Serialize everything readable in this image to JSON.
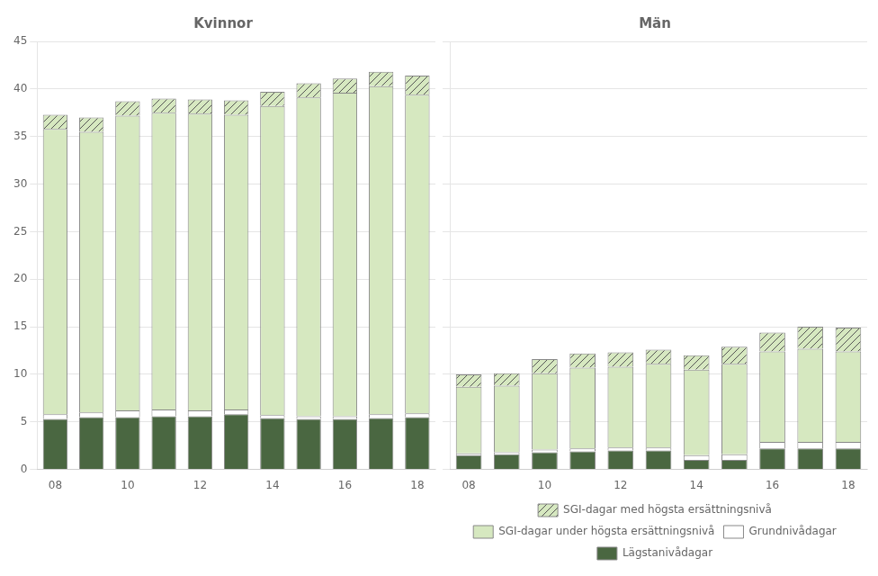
{
  "chart_data": [
    {
      "type": "bar",
      "title": "Kvinnor",
      "stacked": true,
      "categories": [
        "08",
        null,
        "10",
        null,
        "12",
        null,
        "14",
        null,
        "16",
        null,
        "18"
      ],
      "series": [
        {
          "name": "Lägstanivådagar",
          "color": "#4a6741",
          "values": [
            5.3,
            5.5,
            5.5,
            5.6,
            5.6,
            5.8,
            5.4,
            5.3,
            5.3,
            5.4,
            5.5
          ]
        },
        {
          "name": "Grundnivådagar",
          "color": "#ffffff",
          "values": [
            0.5,
            0.5,
            0.7,
            0.7,
            0.6,
            0.5,
            0.3,
            0.3,
            0.3,
            0.4,
            0.4
          ]
        },
        {
          "name": "SGI-dagar under högsta ersättningsnivå",
          "color": "#d6e8c0",
          "values": [
            30.0,
            29.5,
            31.0,
            31.2,
            31.2,
            31.0,
            32.5,
            33.5,
            34.0,
            34.5,
            33.5
          ]
        },
        {
          "name": "SGI-dagar med högsta ersättningsnivå",
          "color": "#d6e8c0",
          "values": [
            1.5,
            1.5,
            1.5,
            1.5,
            1.5,
            1.5,
            1.5,
            1.5,
            1.5,
            1.5,
            2.0
          ]
        }
      ],
      "ylim": [
        0,
        45
      ],
      "yticks": [
        0,
        5,
        10,
        15,
        20,
        25,
        30,
        35,
        40,
        45
      ],
      "grid": true
    },
    {
      "type": "bar",
      "title": "Män",
      "stacked": true,
      "tick_labels": "x",
      "legend": "bottom",
      "categories": [
        "08",
        null,
        "10",
        null,
        "12",
        null,
        "14",
        null,
        "16",
        null,
        "18"
      ],
      "series": [
        {
          "name": "Lägstanivådagar",
          "color": "#4a6741",
          "values": [
            1.5,
            1.6,
            1.8,
            1.9,
            2.0,
            2.0,
            1.0,
            1.0,
            2.2,
            2.2,
            2.2
          ]
        },
        {
          "name": "Grundnivådagar",
          "color": "#ffffff",
          "values": [
            0.2,
            0.2,
            0.3,
            0.3,
            0.3,
            0.3,
            0.5,
            0.6,
            0.7,
            0.7,
            0.7
          ]
        },
        {
          "name": "SGI-dagar under högsta ersättningsnivå",
          "color": "#d6e8c0",
          "values": [
            7.0,
            7.0,
            8.0,
            8.5,
            8.5,
            8.8,
            9.0,
            9.5,
            9.5,
            9.8,
            9.5
          ]
        },
        {
          "name": "SGI-dagar med högsta ersättningsnivå",
          "color": "#d6e8c0",
          "values": [
            1.3,
            1.3,
            1.5,
            1.5,
            1.5,
            1.5,
            1.5,
            1.8,
            2.0,
            2.3,
            2.5
          ]
        }
      ],
      "ylim": [
        0,
        45
      ],
      "yticks": [
        0,
        5,
        10,
        15,
        20,
        25,
        30,
        35,
        40,
        45
      ],
      "grid": true
    }
  ]
}
